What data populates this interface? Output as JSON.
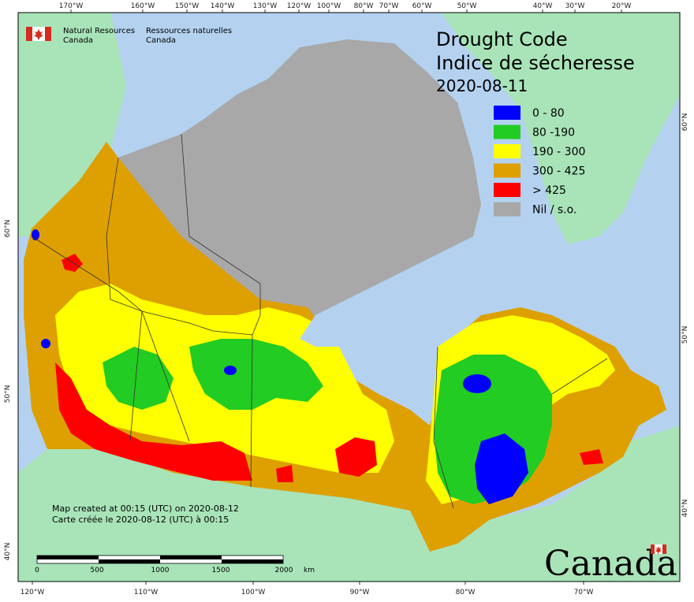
{
  "map": {
    "title_en": "Drought Code",
    "title_fr": "Indice de sécheresse",
    "date": "2020-08-11",
    "legend": [
      {
        "label": "0 - 80",
        "color": "#0000ff"
      },
      {
        "label": "80 -190",
        "color": "#22cc22"
      },
      {
        "label": "190 - 300",
        "color": "#ffff00"
      },
      {
        "label": "300 - 425",
        "color": "#dda000"
      },
      {
        "label": "> 425",
        "color": "#ff0000"
      },
      {
        "label": "Nil / s.o.",
        "color": "#a8a8a8"
      }
    ],
    "agency_en_1": "Natural Resources",
    "agency_en_2": "Canada",
    "agency_fr_1": "Ressources naturelles",
    "agency_fr_2": "Canada",
    "credit_en": "Map created at 00:15 (UTC) on 2020-08-12",
    "credit_fr": "Carte créée le 2020-08-12 (UTC) à 00:15",
    "scale_labels": [
      "0",
      "500",
      "1000",
      "1500",
      "2000",
      "km"
    ],
    "wordmark": "Canada",
    "top_lon_ticks": [
      "170°W",
      "160°W",
      "150°W",
      "140°W",
      "130°W",
      "120°W",
      "100°W",
      "80°W",
      "70°W",
      "60°W",
      "50°W",
      "40°W",
      "30°W",
      "20°W"
    ],
    "bottom_lon_ticks": [
      "120°W",
      "110°W",
      "100°W",
      "90°W",
      "80°W",
      "70°W"
    ],
    "left_lat_ticks": [
      "60°N",
      "50°N",
      "40°N"
    ],
    "right_lat_ticks": [
      "60°N",
      "50°N",
      "40°N"
    ],
    "colors": {
      "ocean": "#b4d2f0",
      "land_foreign": "#a8e4b8",
      "nil": "#a8a8a8"
    }
  }
}
